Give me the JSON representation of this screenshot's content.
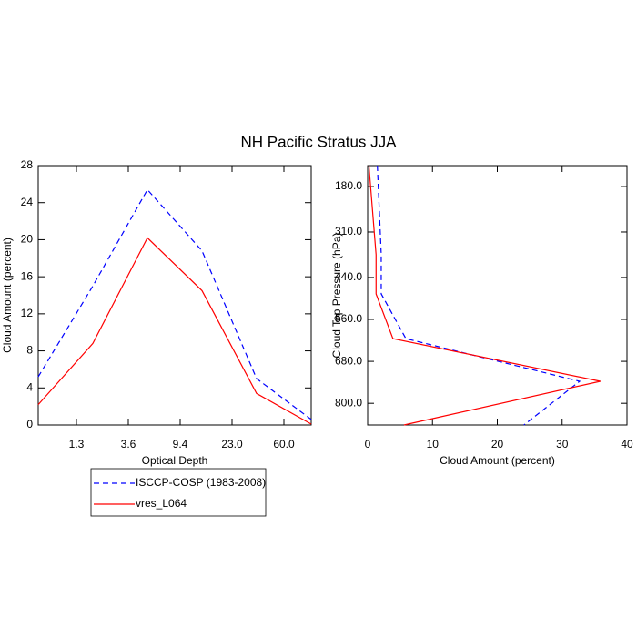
{
  "chart_data": [
    {
      "type": "line",
      "title": "NH Pacific Stratus JJA",
      "xlabel": "Optical Depth",
      "ylabel": "Cloud Amount (percent)",
      "x": [
        0,
        1,
        2,
        3,
        4,
        5
      ],
      "xlim": [
        0,
        5
      ],
      "xticks": [
        {
          "value": 0.7,
          "label": "1.3"
        },
        {
          "value": 1.65,
          "label": "3.6"
        },
        {
          "value": 2.6,
          "label": "9.4"
        },
        {
          "value": 3.55,
          "label": "23.0"
        },
        {
          "value": 4.5,
          "label": "60.0"
        }
      ],
      "ylim": [
        0,
        28
      ],
      "yticks": [
        0,
        4,
        8,
        12,
        16,
        20,
        24,
        28
      ],
      "legend": "bottom-left",
      "series": [
        {
          "name": "ISCCP-COSP (1983-2008)",
          "color": "#0000ff",
          "dashed": true,
          "values": [
            5.2,
            15,
            25.4,
            18.8,
            5,
            0.6
          ]
        },
        {
          "name": "vres_L064",
          "color": "#ff0000",
          "dashed": false,
          "values": [
            2.2,
            8.8,
            20.2,
            14.5,
            3.4,
            0.1
          ]
        }
      ]
    },
    {
      "type": "profile",
      "xlabel": "Cloud Amount (percent)",
      "ylabel": "Cloud Top Pressure (hPa)",
      "y": [
        120,
        375,
        487,
        615,
        737,
        862
      ],
      "xlim": [
        0,
        40
      ],
      "xticks": [
        0,
        10,
        20,
        30,
        40
      ],
      "ylim": [
        120,
        862
      ],
      "inverted_y": true,
      "yticks": [
        {
          "value": 180,
          "label": "180.0"
        },
        {
          "value": 310,
          "label": "310.0"
        },
        {
          "value": 440,
          "label": "440.0"
        },
        {
          "value": 560,
          "label": "560.0"
        },
        {
          "value": 680,
          "label": "680.0"
        },
        {
          "value": 800,
          "label": "800.0"
        }
      ],
      "series": [
        {
          "color": "#0000ff",
          "dashed": true,
          "values": [
            1.5,
            2.1,
            2.1,
            5.9,
            32.7,
            24.1
          ]
        },
        {
          "color": "#ff0000",
          "dashed": false,
          "values": [
            0.2,
            1.3,
            1.3,
            3.9,
            35.9,
            5.6
          ]
        }
      ]
    }
  ]
}
